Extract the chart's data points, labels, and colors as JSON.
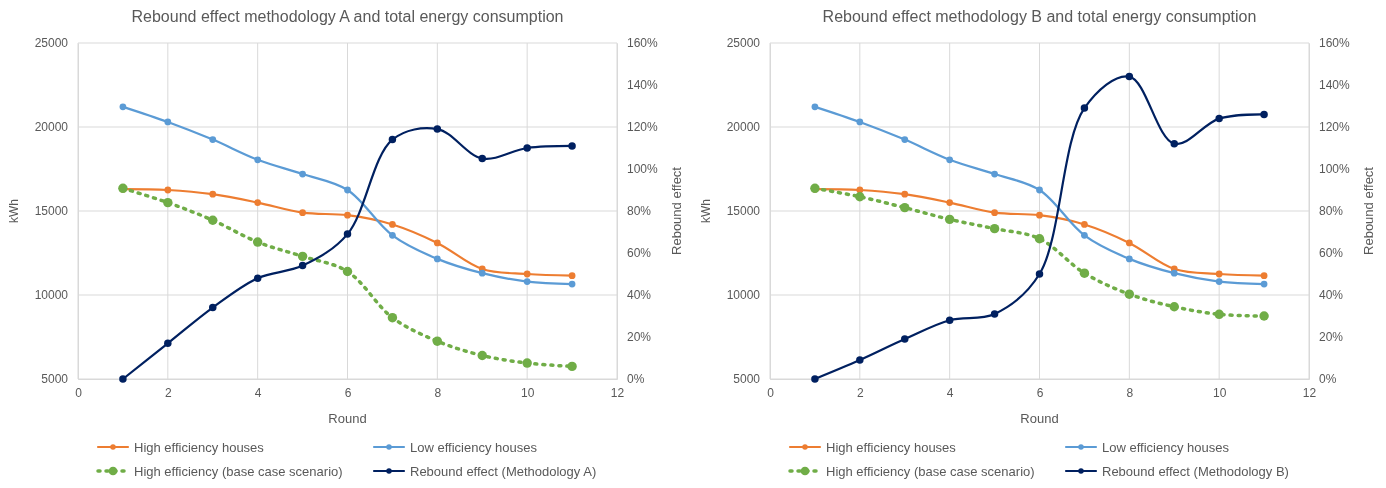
{
  "chart_data": [
    {
      "type": "line",
      "title": "Rebound effect methodology A and total energy consumption",
      "xlabel": "Round",
      "ylabel": "kWh",
      "y2label": "Rebound effect",
      "x": [
        1,
        2,
        3,
        4,
        5,
        6,
        7,
        8,
        9,
        10,
        11
      ],
      "xlim": [
        0,
        12
      ],
      "xticks": [
        0,
        2,
        4,
        6,
        8,
        10,
        12
      ],
      "ylim": [
        5000,
        25000
      ],
      "yticks": [
        5000,
        10000,
        15000,
        20000,
        25000
      ],
      "y2lim": [
        0,
        160
      ],
      "y2ticks": [
        {
          "value": 0,
          "label": "0%"
        },
        {
          "value": 20,
          "label": "20%"
        },
        {
          "value": 40,
          "label": "40%"
        },
        {
          "value": 60,
          "label": "60%"
        },
        {
          "value": 80,
          "label": "80%"
        },
        {
          "value": 100,
          "label": "100%"
        },
        {
          "value": 120,
          "label": "120%"
        },
        {
          "value": 140,
          "label": "140%"
        },
        {
          "value": 160,
          "label": "160%"
        }
      ],
      "grid": true,
      "legend": "bottom",
      "marker": "circle",
      "line_style": "solid",
      "series": [
        {
          "name": "High efficiency houses",
          "color": "#ed7d31",
          "values": [
            16300,
            16250,
            16000,
            15500,
            14900,
            14750,
            14200,
            13100,
            11550,
            11250,
            11150
          ]
        },
        {
          "name": "Low efficiency houses",
          "color": "#5b9bd5",
          "values": [
            21200,
            20300,
            19250,
            18050,
            17200,
            16250,
            13550,
            12150,
            11300,
            10800,
            10650
          ]
        },
        {
          "name": "High efficiency (base case scenario)",
          "color": "#70ad47",
          "line_style": "dotted",
          "values": [
            16350,
            15500,
            14450,
            13150,
            12300,
            11400,
            8650,
            7250,
            6400,
            5950,
            5750
          ]
        },
        {
          "name": "Rebound effect (Methodology A)",
          "color": "#002060",
          "axis": "y2",
          "values": [
            0,
            17,
            34,
            48,
            54,
            69,
            114,
            119,
            105,
            110,
            111
          ]
        }
      ]
    },
    {
      "type": "line",
      "title": "Rebound effect methodology B and total energy consumption",
      "xlabel": "Round",
      "ylabel": "kWh",
      "y2label": "Rebound effect",
      "x": [
        1,
        2,
        3,
        4,
        5,
        6,
        7,
        8,
        9,
        10,
        11
      ],
      "xlim": [
        0,
        12
      ],
      "xticks": [
        0,
        2,
        4,
        6,
        8,
        10,
        12
      ],
      "ylim": [
        5000,
        25000
      ],
      "yticks": [
        5000,
        10000,
        15000,
        20000,
        25000
      ],
      "y2lim": [
        0,
        160
      ],
      "y2ticks": [
        {
          "value": 0,
          "label": "0%"
        },
        {
          "value": 20,
          "label": "20%"
        },
        {
          "value": 40,
          "label": "40%"
        },
        {
          "value": 60,
          "label": "60%"
        },
        {
          "value": 80,
          "label": "80%"
        },
        {
          "value": 100,
          "label": "100%"
        },
        {
          "value": 120,
          "label": "120%"
        },
        {
          "value": 140,
          "label": "140%"
        },
        {
          "value": 160,
          "label": "160%"
        }
      ],
      "grid": true,
      "legend": "bottom",
      "marker": "circle",
      "line_style": "solid",
      "series": [
        {
          "name": "High efficiency houses",
          "color": "#ed7d31",
          "values": [
            16300,
            16250,
            16000,
            15500,
            14900,
            14750,
            14200,
            13100,
            11550,
            11250,
            11150
          ]
        },
        {
          "name": "Low efficiency houses",
          "color": "#5b9bd5",
          "values": [
            21200,
            20300,
            19250,
            18050,
            17200,
            16250,
            13550,
            12150,
            11300,
            10800,
            10650
          ]
        },
        {
          "name": "High efficiency (base case scenario)",
          "color": "#70ad47",
          "line_style": "dotted",
          "values": [
            16350,
            15850,
            15200,
            14500,
            13950,
            13350,
            11300,
            10050,
            9300,
            8850,
            8750
          ]
        },
        {
          "name": "Rebound effect (Methodology B)",
          "color": "#002060",
          "axis": "y2",
          "values": [
            0,
            9,
            19,
            28,
            31,
            50,
            129,
            144,
            112,
            124,
            126
          ]
        }
      ]
    }
  ]
}
